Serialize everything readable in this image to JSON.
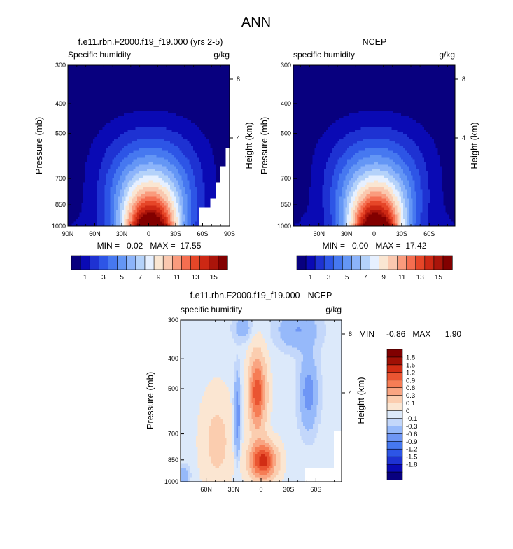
{
  "main_title": "ANN",
  "panels": [
    {
      "title": "f.e11.rbn.F2000.f19_f19.000 (yrs 2-5)",
      "left_label": "Specific humidity",
      "right_label": "g/kg",
      "ylabel": "Pressure (mb)",
      "y2label": "Height (km)",
      "stats": "MIN =   0.02   MAX =  17.55"
    },
    {
      "title": "NCEP",
      "left_label": "specific humidity",
      "right_label": "g/kg",
      "ylabel": "Pressure (mb)",
      "y2label": "Height (km)",
      "stats": "MIN =   0.00   MAX =  17.42"
    },
    {
      "title": "f.e11.rbn.F2000.f19_f19.000 - NCEP",
      "left_label": "specific humidity",
      "right_label": "g/kg",
      "ylabel": "Pressure (mb)",
      "y2label": "Height (km)",
      "stats": "MIN =  -0.86   MAX =   1.90"
    }
  ],
  "colors": {
    "abs_scale": [
      "#08007f",
      "#0a0ab4",
      "#1e32d2",
      "#2d55e6",
      "#4678f0",
      "#6496f5",
      "#8cb4fa",
      "#b4d2fa",
      "#e6f0ff",
      "#fae6d2",
      "#fac8af",
      "#fa9b7d",
      "#f56e50",
      "#e64628",
      "#cd2814",
      "#aa140a",
      "#820000"
    ],
    "diff_scale": [
      "#08007f",
      "#0a0ab4",
      "#1e32d2",
      "#2d55e6",
      "#4678f0",
      "#6e96f5",
      "#96b9fa",
      "#c3d7fa",
      "#dce9fa",
      "#fbe6d2",
      "#fbcdaf",
      "#f9a582",
      "#f67d55",
      "#ea5532",
      "#d22d14",
      "#a01005",
      "#800000"
    ]
  },
  "chart_data": [
    {
      "type": "heatmap",
      "title": "f.e11.rbn.F2000.f19_f19.000 (yrs 2-5)",
      "variable": "Specific humidity",
      "units": "g/kg",
      "ylabel": "Pressure (mb)",
      "y2label": "Height (km)",
      "x_ticks": [
        "90N",
        "60N",
        "30N",
        "0",
        "30S",
        "60S",
        "90S"
      ],
      "y_ticks": [
        300,
        400,
        500,
        700,
        850,
        1000
      ],
      "y2_ticks": [
        8,
        4
      ],
      "y_scale": "log-pressure",
      "contour_levels": [
        1,
        2,
        3,
        4,
        5,
        6,
        7,
        8,
        9,
        10,
        11,
        12,
        13,
        14,
        15,
        16
      ],
      "colorbar_labels": [
        "1",
        "3",
        "5",
        "7",
        "9",
        "11",
        "13",
        "15"
      ],
      "min": 0.02,
      "max": 17.55,
      "peak_latitude": -2
    },
    {
      "type": "heatmap",
      "title": "NCEP",
      "variable": "specific humidity",
      "units": "g/kg",
      "ylabel": "Pressure (mb)",
      "y2label": "Height (km)",
      "x_ticks": [
        "60N",
        "30N",
        "0",
        "30S",
        "60S"
      ],
      "y_ticks": [
        300,
        400,
        500,
        700,
        850,
        1000
      ],
      "y2_ticks": [
        8,
        4
      ],
      "y_scale": "log-pressure",
      "contour_levels": [
        1,
        2,
        3,
        4,
        5,
        6,
        7,
        8,
        9,
        10,
        11,
        12,
        13,
        14,
        15,
        16
      ],
      "colorbar_labels": [
        "1",
        "3",
        "5",
        "7",
        "9",
        "11",
        "13",
        "15"
      ],
      "min": 0.0,
      "max": 17.42,
      "peak_latitude": -2
    },
    {
      "type": "heatmap",
      "title": "f.e11.rbn.F2000.f19_f19.000 - NCEP",
      "variable": "specific humidity",
      "units": "g/kg",
      "ylabel": "Pressure (mb)",
      "y2label": "Height (km)",
      "x_ticks": [
        "60N",
        "30N",
        "0",
        "30S",
        "60S"
      ],
      "y_ticks": [
        300,
        400,
        500,
        700,
        850,
        1000
      ],
      "y2_ticks": [
        8,
        4
      ],
      "y_scale": "log-pressure",
      "contour_levels": [
        -1.8,
        -1.5,
        -1.2,
        -0.9,
        -0.6,
        -0.3,
        -0.1,
        0,
        0.1,
        0.3,
        0.6,
        0.9,
        1.2,
        1.5,
        1.8
      ],
      "colorbar_labels": [
        "1.8",
        "1.5",
        "1.2",
        "0.9",
        "0.6",
        "0.3",
        "0.1",
        "0",
        "-0.1",
        "-0.3",
        "-0.6",
        "-0.9",
        "-1.2",
        "-1.5",
        "-1.8"
      ],
      "min": -0.86,
      "max": 1.9
    }
  ]
}
